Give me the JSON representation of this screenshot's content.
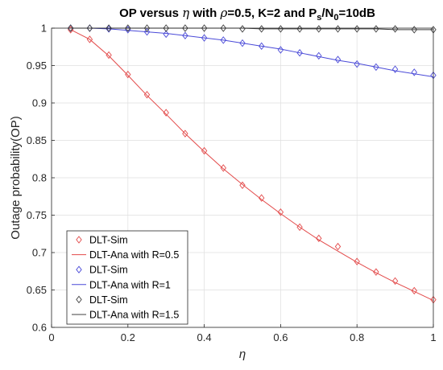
{
  "chart_data": {
    "type": "line",
    "title": {
      "prefix": "OP versus ",
      "eta": "η",
      "mid": " with ",
      "rho": "ρ",
      "rest": "=0.5, K=2 and P",
      "sub_s": "s",
      "slash_n": "/N",
      "sub_0": "0",
      "end": "=10dB"
    },
    "xlabel": "η",
    "ylabel": "Outage probability(OP)",
    "xlim": [
      0,
      1
    ],
    "ylim": [
      0.6,
      1
    ],
    "xticks": [
      "0",
      "0.2",
      "0.4",
      "0.6",
      "0.8",
      "1"
    ],
    "yticks": [
      "0.6",
      "0.65",
      "0.7",
      "0.75",
      "0.8",
      "0.85",
      "0.9",
      "0.95",
      "1"
    ],
    "grid": true,
    "legend_position": "bottom-left",
    "x": [
      0.05,
      0.1,
      0.15,
      0.2,
      0.25,
      0.3,
      0.35,
      0.4,
      0.45,
      0.5,
      0.55,
      0.6,
      0.65,
      0.7,
      0.75,
      0.8,
      0.85,
      0.9,
      0.95,
      1.0
    ],
    "series": [
      {
        "name": "DLT-Sim",
        "kind": "markers",
        "color": "#e34a4a",
        "values": [
          0.998,
          0.985,
          0.964,
          0.938,
          0.911,
          0.887,
          0.859,
          0.836,
          0.813,
          0.79,
          0.773,
          0.754,
          0.734,
          0.719,
          0.708,
          0.688,
          0.674,
          0.662,
          0.649,
          0.637
        ]
      },
      {
        "name": "DLT-Ana with R=0.5",
        "kind": "line",
        "color": "#e34a4a",
        "values": [
          0.998,
          0.985,
          0.963,
          0.937,
          0.91,
          0.885,
          0.859,
          0.835,
          0.812,
          0.791,
          0.771,
          0.752,
          0.734,
          0.717,
          0.702,
          0.687,
          0.673,
          0.66,
          0.648,
          0.636
        ]
      },
      {
        "name": "DLT-Sim",
        "kind": "markers",
        "color": "#4a4ad8",
        "values": [
          1.0,
          1.0,
          0.999,
          0.998,
          0.995,
          0.992,
          0.99,
          0.987,
          0.984,
          0.98,
          0.976,
          0.971,
          0.967,
          0.963,
          0.958,
          0.952,
          0.948,
          0.945,
          0.941,
          0.937
        ]
      },
      {
        "name": "DLT-Ana with R=1",
        "kind": "line",
        "color": "#4a4ad8",
        "values": [
          1.0,
          1.0,
          0.999,
          0.997,
          0.995,
          0.993,
          0.99,
          0.987,
          0.984,
          0.98,
          0.976,
          0.972,
          0.967,
          0.962,
          0.957,
          0.953,
          0.948,
          0.943,
          0.939,
          0.935
        ]
      },
      {
        "name": "DLT-Sim",
        "kind": "markers",
        "color": "#404040",
        "values": [
          1.0,
          1.0,
          1.0,
          1.0,
          1.0,
          1.0,
          1.0,
          1.0,
          1.0,
          0.999,
          0.999,
          0.999,
          0.999,
          0.999,
          0.999,
          0.999,
          0.999,
          0.999,
          0.998,
          0.998
        ]
      },
      {
        "name": "DLT-Ana with R=1.5",
        "kind": "line",
        "color": "#404040",
        "values": [
          1.0,
          1.0,
          1.0,
          1.0,
          1.0,
          1.0,
          1.0,
          1.0,
          1.0,
          1.0,
          0.999,
          0.999,
          0.999,
          0.999,
          0.999,
          0.999,
          0.999,
          0.998,
          0.998,
          0.998
        ]
      }
    ]
  }
}
